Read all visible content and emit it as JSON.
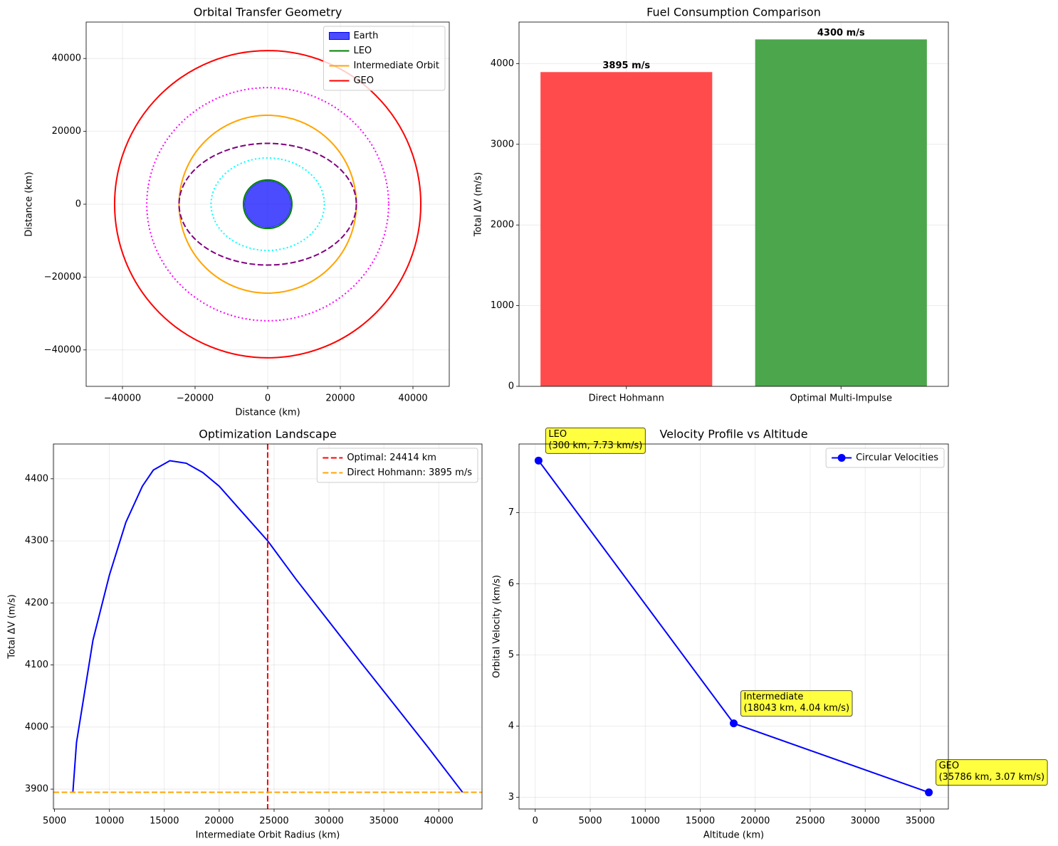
{
  "chart_data": [
    {
      "type": "orbits",
      "title": "Orbital Transfer Geometry",
      "xlabel": "Distance (km)",
      "ylabel": "Distance (km)",
      "xlim": [
        -50000,
        50000
      ],
      "ylim": [
        -50000,
        50000
      ],
      "xticks": [
        {
          "value": -40000,
          "label": "−40000"
        },
        {
          "value": -20000,
          "label": "−20000"
        },
        0,
        20000,
        40000
      ],
      "yticks": [
        {
          "value": -40000,
          "label": "−40000"
        },
        {
          "value": -20000,
          "label": "−20000"
        },
        0,
        20000,
        40000
      ],
      "grid": true,
      "legend": "upper right",
      "series": [
        {
          "name": "Earth",
          "color": "#0000ff",
          "radius": 6371,
          "fill": true,
          "alpha": 0.7
        },
        {
          "name": "LEO",
          "color": "#008000",
          "radius": 6671
        },
        {
          "name": "Intermediate Orbit",
          "color": "#ffa500",
          "radius": 24414
        },
        {
          "name": "GEO",
          "color": "#ff0000",
          "radius": 42164
        },
        {
          "color": "#800080",
          "rx": 24414,
          "ry": 16700,
          "dash": "dashed"
        },
        {
          "color": "#00ffff",
          "rx": 15600,
          "ry": 12700,
          "dash": "dotted"
        },
        {
          "color": "#ff00ff",
          "rx": 33300,
          "ry": 32000,
          "dash": "dotted"
        }
      ]
    },
    {
      "type": "bar",
      "title": "Fuel Consumption Comparison",
      "ylabel": "Total ΔV (m/s)",
      "categories": [
        "Direct Hohmann",
        "Optimal Multi-Impulse"
      ],
      "values": [
        3895,
        4300
      ],
      "value_labels": [
        "3895 m/s",
        "4300 m/s"
      ],
      "colors": [
        "#ff4b4b",
        "#4ca64c"
      ],
      "ylim": [
        0,
        4515
      ],
      "yticks": [
        0,
        1000,
        2000,
        3000,
        4000
      ],
      "grid": true
    },
    {
      "type": "line",
      "title": "Optimization Landscape",
      "xlabel": "Intermediate Orbit Radius (km)",
      "ylabel": "Total ΔV (m/s)",
      "x": [
        6671,
        7000,
        7500,
        8500,
        10000,
        11500,
        13000,
        14000,
        15500,
        17000,
        18500,
        20000,
        22000,
        24414,
        27000,
        30000,
        33000,
        36000,
        39000,
        42164
      ],
      "values": [
        3895,
        3975,
        4030,
        4140,
        4245,
        4330,
        4388,
        4414,
        4429,
        4425,
        4410,
        4388,
        4348,
        4300,
        4238,
        4170,
        4102,
        4035,
        3968,
        3895
      ],
      "color": "#0000ff",
      "reference_lines": [
        {
          "name": "Optimal: 24414 km",
          "orientation": "vertical",
          "value": 24414,
          "color": "#ff0000"
        },
        {
          "name": "Direct Hohmann: 3895 m/s",
          "orientation": "horizontal",
          "value": 3895,
          "color": "#ffa500"
        }
      ],
      "xlim": [
        4896,
        43939
      ],
      "ylim": [
        3868,
        4456
      ],
      "xticks": [
        5000,
        10000,
        15000,
        20000,
        25000,
        30000,
        35000,
        40000
      ],
      "yticks": [
        3900,
        4000,
        4100,
        4200,
        4300,
        4400
      ],
      "grid": true,
      "legend": "upper right"
    },
    {
      "type": "line",
      "title": "Velocity Profile vs Altitude",
      "xlabel": "Altitude (km)",
      "ylabel": "Orbital Velocity (km/s)",
      "x": [
        300,
        18043,
        35786
      ],
      "series": [
        {
          "name": "Circular Velocities",
          "color": "#0000ff",
          "values": [
            7.73,
            4.04,
            3.07
          ],
          "marker": true
        }
      ],
      "annotations": [
        {
          "lines": [
            "LEO",
            "(300 km, 7.73 km/s)"
          ]
        },
        {
          "lines": [
            "Intermediate",
            "(18043 km, 4.04 km/s)"
          ]
        },
        {
          "lines": [
            "GEO",
            "(35786 km, 3.07 km/s)"
          ]
        }
      ],
      "xlim": [
        -1474,
        37560
      ],
      "ylim": [
        2.837,
        7.963
      ],
      "xticks": [
        0,
        5000,
        10000,
        15000,
        20000,
        25000,
        30000,
        35000
      ],
      "yticks": [
        3,
        4,
        5,
        6,
        7
      ],
      "grid": true,
      "legend": "upper right"
    }
  ]
}
